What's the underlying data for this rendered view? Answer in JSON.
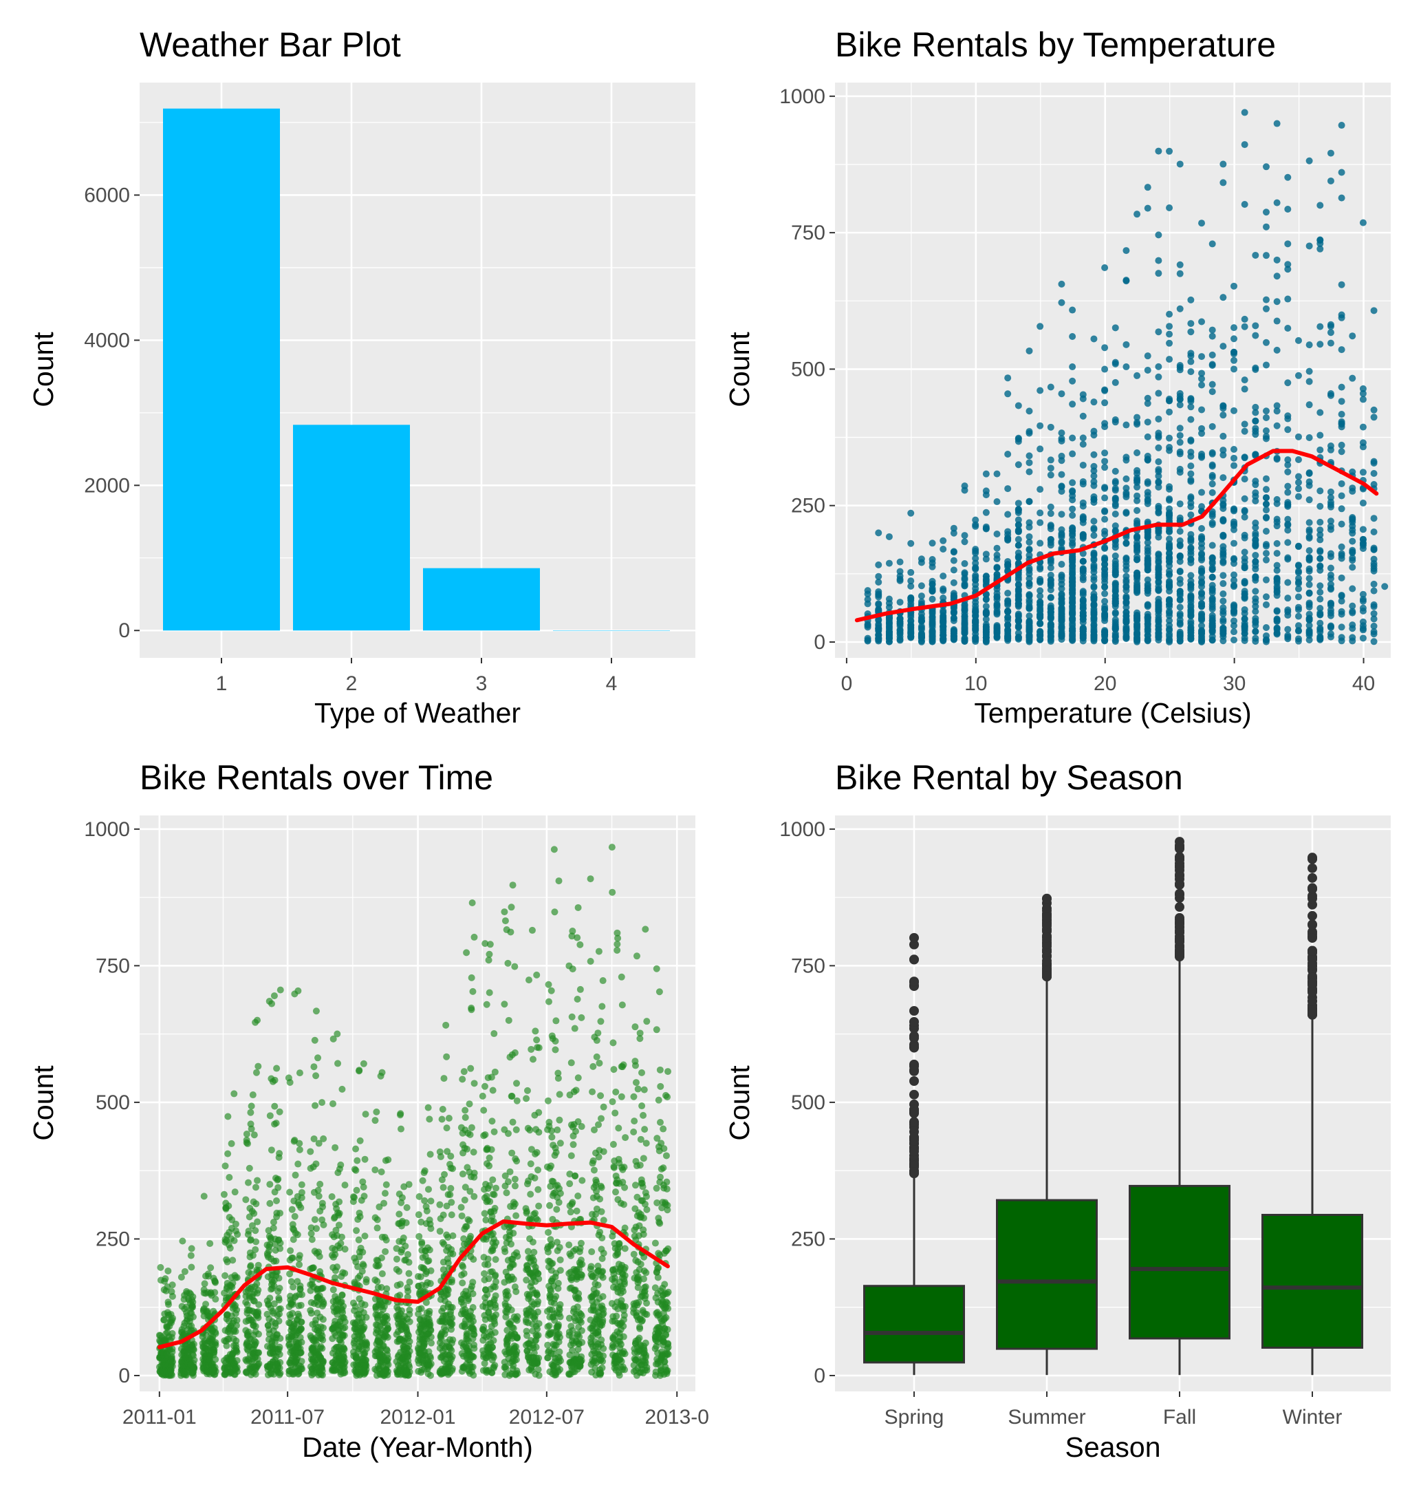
{
  "chart_data": [
    {
      "type": "bar",
      "title": "Weather Bar Plot",
      "xlabel": "Type of Weather",
      "ylabel": "Count",
      "categories": [
        "1",
        "2",
        "3",
        "4"
      ],
      "values": [
        7192,
        2834,
        859,
        1
      ],
      "ylim": [
        0,
        7550
      ],
      "yticks": [
        "0",
        "2000",
        "4000",
        "6000"
      ],
      "bar_color": "#00BFFF",
      "grid": true
    },
    {
      "type": "scatter",
      "title": "Bike Rentals by Temperature",
      "xlabel": "Temperature (Celsius)",
      "ylabel": "Count",
      "xlim": [
        -0.9,
        42.1
      ],
      "ylim": [
        -29,
        1025
      ],
      "xticks": [
        "0",
        "10",
        "20",
        "30",
        "40"
      ],
      "yticks": [
        "0",
        "250",
        "500",
        "750",
        "1000"
      ],
      "point_color": "#00688B",
      "smooth_color": "#FF0000",
      "smooth": {
        "x": [
          0.8,
          3,
          5,
          8,
          10,
          12,
          14,
          16,
          18,
          20,
          22,
          24,
          26,
          27.5,
          29,
          31,
          33,
          34.5,
          36,
          38,
          40,
          41
        ],
        "y": [
          40,
          52,
          60,
          70,
          85,
          115,
          145,
          162,
          168,
          185,
          205,
          215,
          215,
          230,
          270,
          325,
          350,
          350,
          340,
          315,
          290,
          272
        ]
      },
      "points_summary": "dense scatter of hourly rental counts (0 to about 977) versus temperature (about 0.8 to 41 °C)",
      "grid": true
    },
    {
      "type": "scatter",
      "title": "Bike Rentals over Time",
      "xlabel": "Date (Year-Month)",
      "ylabel": "Count",
      "xlim": [
        "2010-12-04",
        "2013-01-27"
      ],
      "ylim": [
        -29,
        1025
      ],
      "xticks": [
        "2011-01",
        "2011-07",
        "2012-01",
        "2012-07",
        "2013-0"
      ],
      "yticks": [
        "0",
        "250",
        "500",
        "750",
        "1000"
      ],
      "point_color": "#228B22",
      "smooth_color": "#FF0000",
      "smooth": {
        "x": [
          "2011-01-01",
          "2011-02-01",
          "2011-03-01",
          "2011-04-01",
          "2011-05-01",
          "2011-06-01",
          "2011-07-01",
          "2011-08-01",
          "2011-09-01",
          "2011-10-01",
          "2011-11-01",
          "2011-12-01",
          "2012-01-01",
          "2012-02-01",
          "2012-03-01",
          "2012-04-01",
          "2012-05-01",
          "2012-06-01",
          "2012-07-01",
          "2012-08-01",
          "2012-09-01",
          "2012-10-01",
          "2012-11-01",
          "2012-12-19"
        ],
        "y": [
          52,
          62,
          82,
          120,
          165,
          195,
          198,
          185,
          170,
          160,
          150,
          138,
          135,
          160,
          215,
          260,
          282,
          278,
          275,
          278,
          280,
          272,
          240,
          200
        ]
      },
      "points_summary": "dense scatter of hourly rental counts (0 to about 977) from 2011-01 through 2012-12",
      "grid": true
    },
    {
      "type": "box",
      "title": "Bike Rental by Season",
      "xlabel": "Season",
      "ylabel": "Count",
      "categories": [
        "Spring",
        "Summer",
        "Fall",
        "Winter"
      ],
      "ylim": [
        -29,
        1025
      ],
      "yticks": [
        "0",
        "250",
        "500",
        "750",
        "1000"
      ],
      "box_color": "#006400",
      "series": [
        {
          "category": "Spring",
          "q1": 24,
          "median": 78,
          "q3": 164,
          "whisker_low": 1,
          "whisker_high": 370,
          "outlier_max": 801
        },
        {
          "category": "Summer",
          "q1": 49,
          "median": 172,
          "q3": 321,
          "whisker_low": 1,
          "whisker_high": 730,
          "outlier_max": 873
        },
        {
          "category": "Fall",
          "q1": 68,
          "median": 195,
          "q3": 347,
          "whisker_low": 1,
          "whisker_high": 765,
          "outlier_max": 977
        },
        {
          "category": "Winter",
          "q1": 51,
          "median": 161,
          "q3": 294,
          "whisker_low": 1,
          "whisker_high": 660,
          "outlier_max": 948
        }
      ],
      "grid": true
    }
  ]
}
